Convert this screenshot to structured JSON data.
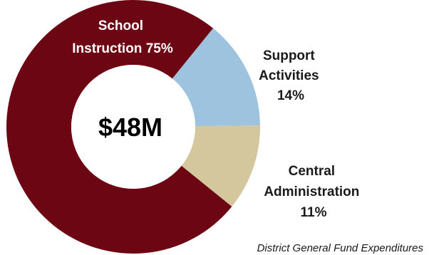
{
  "chart_data": {
    "type": "pie",
    "style": "donut",
    "center_label": "$48M",
    "caption": "District General Fund Expenditures",
    "slices": [
      {
        "label_lines": [
          "School",
          "Instruction 75%"
        ],
        "value": 75,
        "color": "#6b0612",
        "label_color": "#ffffff"
      },
      {
        "label_lines": [
          "Support",
          "Activities",
          "14%"
        ],
        "value": 14,
        "color": "#9ec3df",
        "label_color": "#1a1a1a"
      },
      {
        "label_lines": [
          "Central",
          "Administration",
          "11%"
        ],
        "value": 11,
        "color": "#d4c69d",
        "label_color": "#1a1a1a"
      }
    ]
  }
}
